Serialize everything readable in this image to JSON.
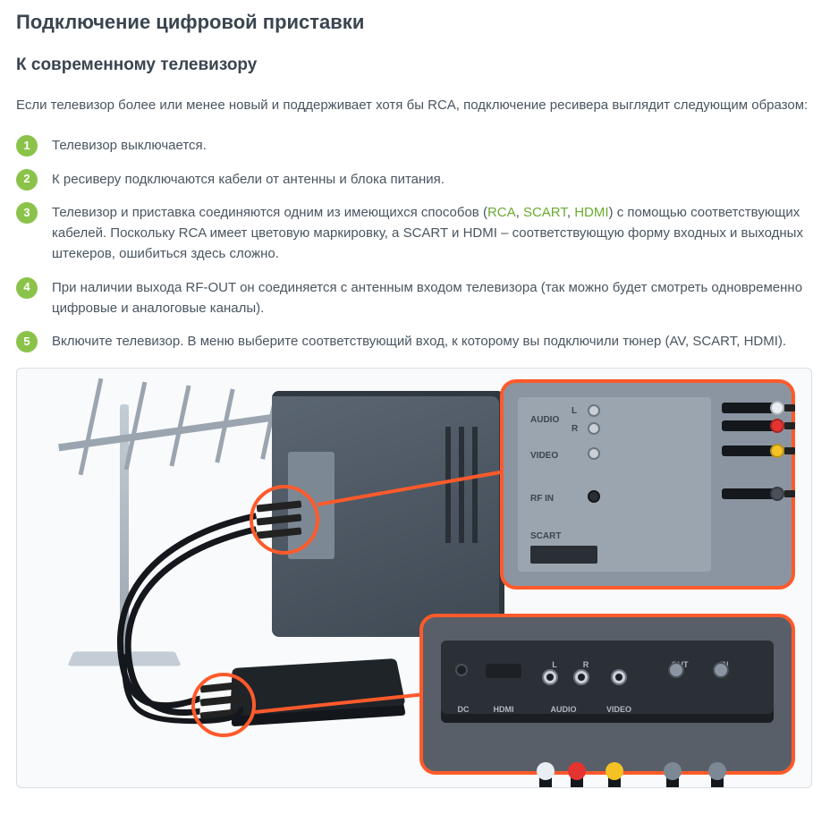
{
  "heading": "Подключение цифровой приставки",
  "subheading": "К современному телевизору",
  "intro": "Если телевизор более или менее новый и поддерживает хотя бы RCA, подключение ресивера выглядит следующим образом:",
  "steps": [
    {
      "text_before": "Телевизор выключается.",
      "links": [],
      "text_after": ""
    },
    {
      "text_before": "К ресиверу подключаются кабели от антенны и блока питания.",
      "links": [],
      "text_after": ""
    },
    {
      "text_before": "Телевизор и приставка соединяются одним из имеющихся способов (",
      "links": [
        "RCA",
        "SCART",
        "HDMI"
      ],
      "text_after": ") с помощью соответствующих кабелей. Поскольку RCA имеет цветовую маркировку, а SCART и HDMI – соответствующую форму входных и выходных штекеров, ошибиться здесь сложно."
    },
    {
      "text_before": "При наличии выхода RF-OUT он соединяется с антенным входом телевизора (так можно будет смотреть одновременно цифровые и аналоговые каналы).",
      "links": [],
      "text_after": ""
    },
    {
      "text_before": "Включите телевизор. В меню выберите соответствующий вход, к которому вы подключили тюнер (AV, SCART, HDMI).",
      "links": [],
      "text_after": ""
    }
  ],
  "colors": {
    "accent_green": "#8bc34a",
    "link_green": "#6aaa2e",
    "callout_orange": "#ff5a2b",
    "rca_white": "#e8eef3",
    "rca_red": "#e3342f",
    "rca_yellow": "#f4c224",
    "tv_body": "#5b6672",
    "panel_gray": "#8a95a1",
    "stb_black": "#2b3036",
    "text": "#4a5560"
  },
  "tv_panel": {
    "labels": {
      "audio": "AUDIO",
      "audio_l": "L",
      "audio_r": "R",
      "video": "VIDEO",
      "rfin": "RF IN",
      "scart": "SCART"
    }
  },
  "stb_panel": {
    "labels": {
      "dc": "DC",
      "hdmi": "HDMI",
      "l": "L",
      "r": "R",
      "audio": "AUDIO",
      "video": "VIDEO",
      "out": "OUT",
      "in": "IN"
    }
  }
}
